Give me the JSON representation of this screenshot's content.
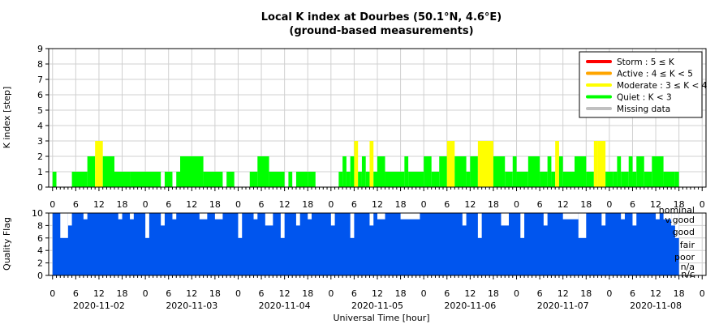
{
  "chart_data": [
    {
      "type": "bar",
      "title": "Local K index at Dourbes (50.1°N, 4.6°E)",
      "subtitle": "(ground-based measurements)",
      "xlabel": "Universal Time [hour]",
      "ylabel": "K index [step]",
      "ylim": [
        0,
        9
      ],
      "y_ticks": [
        "0",
        "1",
        "2",
        "3",
        "4",
        "5",
        "6",
        "7",
        "8",
        "9"
      ],
      "x_unit": "hours since 2020-11-02 00:00 UT",
      "x_range_hours": [
        -1,
        169
      ],
      "hour_tick_labels": [
        "0",
        "6",
        "12",
        "18"
      ],
      "day_labels": [
        "2020-11-02",
        "2020-11-03",
        "2020-11-04",
        "2020-11-05",
        "2020-11-06",
        "2020-11-07",
        "2020-11-08"
      ],
      "grid": true,
      "legend_position": "top-right",
      "legend": [
        {
          "label": "Storm : 5 ≤ K",
          "color": "#ff0000"
        },
        {
          "label": "Active : 4 ≤ K < 5",
          "color": "#ffa500"
        },
        {
          "label": "Moderate : 3 ≤ K < 4",
          "color": "#ffff00"
        },
        {
          "label": "Quiet : K < 3",
          "color": "#00ff00"
        },
        {
          "label": "Missing data",
          "color": "#c0c0c0"
        }
      ],
      "segments": [
        {
          "x": [
            0,
            1
          ],
          "k": 1
        },
        {
          "x": [
            5,
            9
          ],
          "k": 1
        },
        {
          "x": [
            9,
            11
          ],
          "k": 2
        },
        {
          "x": [
            11,
            13
          ],
          "k": 3
        },
        {
          "x": [
            13,
            16
          ],
          "k": 2
        },
        {
          "x": [
            16,
            20
          ],
          "k": 1
        },
        {
          "x": [
            20,
            28
          ],
          "k": 1
        },
        {
          "x": [
            29,
            31
          ],
          "k": 1
        },
        {
          "x": [
            32,
            33
          ],
          "k": 1
        },
        {
          "x": [
            33,
            39
          ],
          "k": 2
        },
        {
          "x": [
            39,
            44
          ],
          "k": 1
        },
        {
          "x": [
            45,
            47
          ],
          "k": 1
        },
        {
          "x": [
            51,
            53
          ],
          "k": 1
        },
        {
          "x": [
            53,
            56
          ],
          "k": 2
        },
        {
          "x": [
            56,
            60
          ],
          "k": 1
        },
        {
          "x": [
            61,
            62
          ],
          "k": 1
        },
        {
          "x": [
            63,
            66
          ],
          "k": 1
        },
        {
          "x": [
            66,
            68
          ],
          "k": 1
        },
        {
          "x": [
            74,
            75
          ],
          "k": 1
        },
        {
          "x": [
            75,
            76
          ],
          "k": 2
        },
        {
          "x": [
            76,
            77
          ],
          "k": 1
        },
        {
          "x": [
            77,
            78
          ],
          "k": 2
        },
        {
          "x": [
            78,
            79
          ],
          "k": 3
        },
        {
          "x": [
            79,
            80
          ],
          "k": 1
        },
        {
          "x": [
            80,
            81
          ],
          "k": 2
        },
        {
          "x": [
            81,
            82
          ],
          "k": 1
        },
        {
          "x": [
            82,
            83
          ],
          "k": 3
        },
        {
          "x": [
            83,
            84
          ],
          "k": 1
        },
        {
          "x": [
            84,
            86
          ],
          "k": 2
        },
        {
          "x": [
            86,
            91
          ],
          "k": 1
        },
        {
          "x": [
            91,
            92
          ],
          "k": 2
        },
        {
          "x": [
            92,
            96
          ],
          "k": 1
        },
        {
          "x": [
            96,
            98
          ],
          "k": 2
        },
        {
          "x": [
            98,
            100
          ],
          "k": 1
        },
        {
          "x": [
            100,
            102
          ],
          "k": 2
        },
        {
          "x": [
            102,
            104
          ],
          "k": 3
        },
        {
          "x": [
            104,
            107
          ],
          "k": 2
        },
        {
          "x": [
            107,
            108
          ],
          "k": 1
        },
        {
          "x": [
            108,
            110
          ],
          "k": 2
        },
        {
          "x": [
            110,
            114
          ],
          "k": 3
        },
        {
          "x": [
            114,
            117
          ],
          "k": 2
        },
        {
          "x": [
            117,
            119
          ],
          "k": 1
        },
        {
          "x": [
            119,
            120
          ],
          "k": 2
        },
        {
          "x": [
            120,
            123
          ],
          "k": 1
        },
        {
          "x": [
            123,
            126
          ],
          "k": 2
        },
        {
          "x": [
            126,
            128
          ],
          "k": 1
        },
        {
          "x": [
            128,
            129
          ],
          "k": 2
        },
        {
          "x": [
            129,
            130
          ],
          "k": 1
        },
        {
          "x": [
            130,
            131
          ],
          "k": 3
        },
        {
          "x": [
            131,
            132
          ],
          "k": 2
        },
        {
          "x": [
            132,
            135
          ],
          "k": 1
        },
        {
          "x": [
            135,
            138
          ],
          "k": 2
        },
        {
          "x": [
            138,
            140
          ],
          "k": 1
        },
        {
          "x": [
            140,
            141
          ],
          "k": 3
        },
        {
          "x": [
            141,
            143
          ],
          "k": 3
        },
        {
          "x": [
            143,
            145
          ],
          "k": 1
        },
        {
          "x": [
            145,
            146
          ],
          "k": 1
        },
        {
          "x": [
            146,
            147
          ],
          "k": 2
        },
        {
          "x": [
            147,
            149
          ],
          "k": 1
        },
        {
          "x": [
            149,
            150
          ],
          "k": 2
        },
        {
          "x": [
            150,
            151
          ],
          "k": 1
        },
        {
          "x": [
            151,
            153
          ],
          "k": 2
        },
        {
          "x": [
            153,
            155
          ],
          "k": 1
        },
        {
          "x": [
            155,
            158
          ],
          "k": 2
        },
        {
          "x": [
            158,
            161
          ],
          "k": 1
        },
        {
          "x": [
            161,
            162
          ],
          "k": 1
        }
      ]
    },
    {
      "type": "bar",
      "xlabel": "Universal Time [hour]",
      "ylabel": "Quality Flag",
      "ylim": [
        0,
        10
      ],
      "y_ticks": [
        "0",
        "2",
        "4",
        "6",
        "8",
        "10"
      ],
      "x_range_hours": [
        -1,
        169
      ],
      "grid": true,
      "quality_labels": [
        "nominal",
        "v.good",
        "good",
        "fair",
        "poor",
        "n/a",
        "n/c"
      ],
      "color": "#0055ee",
      "base_value": 10,
      "dips": [
        {
          "x": [
            2,
            4
          ],
          "value": 6
        },
        {
          "x": [
            4,
            5
          ],
          "value": 8
        },
        {
          "x": [
            8,
            9
          ],
          "value": 9
        },
        {
          "x": [
            17,
            18
          ],
          "value": 9
        },
        {
          "x": [
            20,
            21
          ],
          "value": 9
        },
        {
          "x": [
            24,
            25
          ],
          "value": 6
        },
        {
          "x": [
            28,
            29
          ],
          "value": 8
        },
        {
          "x": [
            31,
            32
          ],
          "value": 9
        },
        {
          "x": [
            38,
            40
          ],
          "value": 9
        },
        {
          "x": [
            42,
            44
          ],
          "value": 9
        },
        {
          "x": [
            48,
            49
          ],
          "value": 6
        },
        {
          "x": [
            52,
            53
          ],
          "value": 9
        },
        {
          "x": [
            55,
            57
          ],
          "value": 8
        },
        {
          "x": [
            59,
            60
          ],
          "value": 6
        },
        {
          "x": [
            63,
            64
          ],
          "value": 8
        },
        {
          "x": [
            66,
            67
          ],
          "value": 9
        },
        {
          "x": [
            72,
            73
          ],
          "value": 8
        },
        {
          "x": [
            77,
            78
          ],
          "value": 6
        },
        {
          "x": [
            82,
            83
          ],
          "value": 8
        },
        {
          "x": [
            84,
            86
          ],
          "value": 9
        },
        {
          "x": [
            90,
            95
          ],
          "value": 9
        },
        {
          "x": [
            106,
            107
          ],
          "value": 8
        },
        {
          "x": [
            110,
            111
          ],
          "value": 6
        },
        {
          "x": [
            116,
            118
          ],
          "value": 8
        },
        {
          "x": [
            121,
            122
          ],
          "value": 6
        },
        {
          "x": [
            127,
            128
          ],
          "value": 8
        },
        {
          "x": [
            132,
            136
          ],
          "value": 9
        },
        {
          "x": [
            136,
            138
          ],
          "value": 6
        },
        {
          "x": [
            142,
            143
          ],
          "value": 8
        },
        {
          "x": [
            147,
            148
          ],
          "value": 9
        },
        {
          "x": [
            150,
            151
          ],
          "value": 8
        },
        {
          "x": [
            156,
            157
          ],
          "value": 9
        },
        {
          "x": [
            158,
            160
          ],
          "value": 9
        },
        {
          "x": [
            160,
            161
          ],
          "value": 8
        },
        {
          "x": [
            161,
            162
          ],
          "value": 6
        }
      ]
    }
  ]
}
